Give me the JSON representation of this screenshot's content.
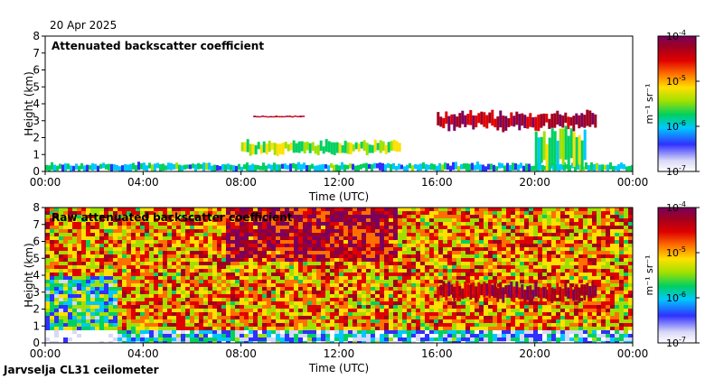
{
  "date_label": "20 Apr 2025",
  "footer_label": "Jarvselja CL31 ceilometer",
  "colorbar": {
    "unit_label": "m⁻¹ sr⁻¹",
    "ticks": [
      {
        "base": "10",
        "exp": "-7"
      },
      {
        "base": "10",
        "exp": "-6"
      },
      {
        "base": "10",
        "exp": "-5"
      },
      {
        "base": "10",
        "exp": "-4"
      }
    ],
    "colors": [
      "#ffffff",
      "#d8d8f8",
      "#3030ff",
      "#00c8ff",
      "#00d060",
      "#a0e000",
      "#ffe000",
      "#ff7000",
      "#e00000",
      "#a00020",
      "#7a0060"
    ]
  },
  "chart_data": [
    {
      "type": "heatmap",
      "title": "Attenuated backscatter coefficient",
      "xlabel": "Time (UTC)",
      "ylabel": "Height (km)",
      "xlim": [
        "00:00",
        "24:00"
      ],
      "ylim": [
        0,
        8
      ],
      "xticks": [
        "00:00",
        "04:00",
        "08:00",
        "12:00",
        "16:00",
        "20:00",
        "00:00"
      ],
      "yticks": [
        "0",
        "1",
        "2",
        "3",
        "4",
        "5",
        "6",
        "7",
        "8"
      ],
      "color_scale": "log",
      "color_range": [
        1e-07,
        0.0001
      ],
      "features": [
        {
          "name": "surface layer",
          "time": [
            "00:00",
            "24:00"
          ],
          "height_km": [
            0,
            0.5
          ],
          "level": 1e-06
        },
        {
          "name": "aerosol layer",
          "time": [
            "08:00",
            "14:30"
          ],
          "height_km": [
            1.0,
            1.8
          ],
          "level": 3e-06
        },
        {
          "name": "cloud layer",
          "time": [
            "16:00",
            "22:30"
          ],
          "height_km": [
            2.5,
            3.5
          ],
          "level": 5e-05
        },
        {
          "name": "high cloud",
          "time": [
            "08:30",
            "10:30"
          ],
          "height_km": [
            3.2,
            3.3
          ],
          "level": 5e-05
        },
        {
          "name": "precipitation",
          "time": [
            "20:00",
            "22:00"
          ],
          "height_km": [
            0,
            2.5
          ],
          "level": 2e-06
        }
      ]
    },
    {
      "type": "heatmap",
      "title": "Raw attenuated backscatter coefficient",
      "xlabel": "Time (UTC)",
      "ylabel": "Height (km)",
      "xlim": [
        "00:00",
        "24:00"
      ],
      "ylim": [
        0,
        8
      ],
      "xticks": [
        "00:00",
        "04:00",
        "08:00",
        "12:00",
        "16:00",
        "20:00",
        "00:00"
      ],
      "yticks": [
        "0",
        "1",
        "2",
        "3",
        "4",
        "5",
        "6",
        "7",
        "8"
      ],
      "color_scale": "log",
      "color_range": [
        1e-07,
        0.0001
      ],
      "features": [
        {
          "name": "noise field",
          "time": [
            "00:00",
            "24:00"
          ],
          "height_km": [
            0,
            8
          ],
          "level": 1e-05
        },
        {
          "name": "cloud layer",
          "time": [
            "16:00",
            "22:30"
          ],
          "height_km": [
            2.5,
            3.5
          ],
          "level": 5e-05
        }
      ]
    }
  ]
}
